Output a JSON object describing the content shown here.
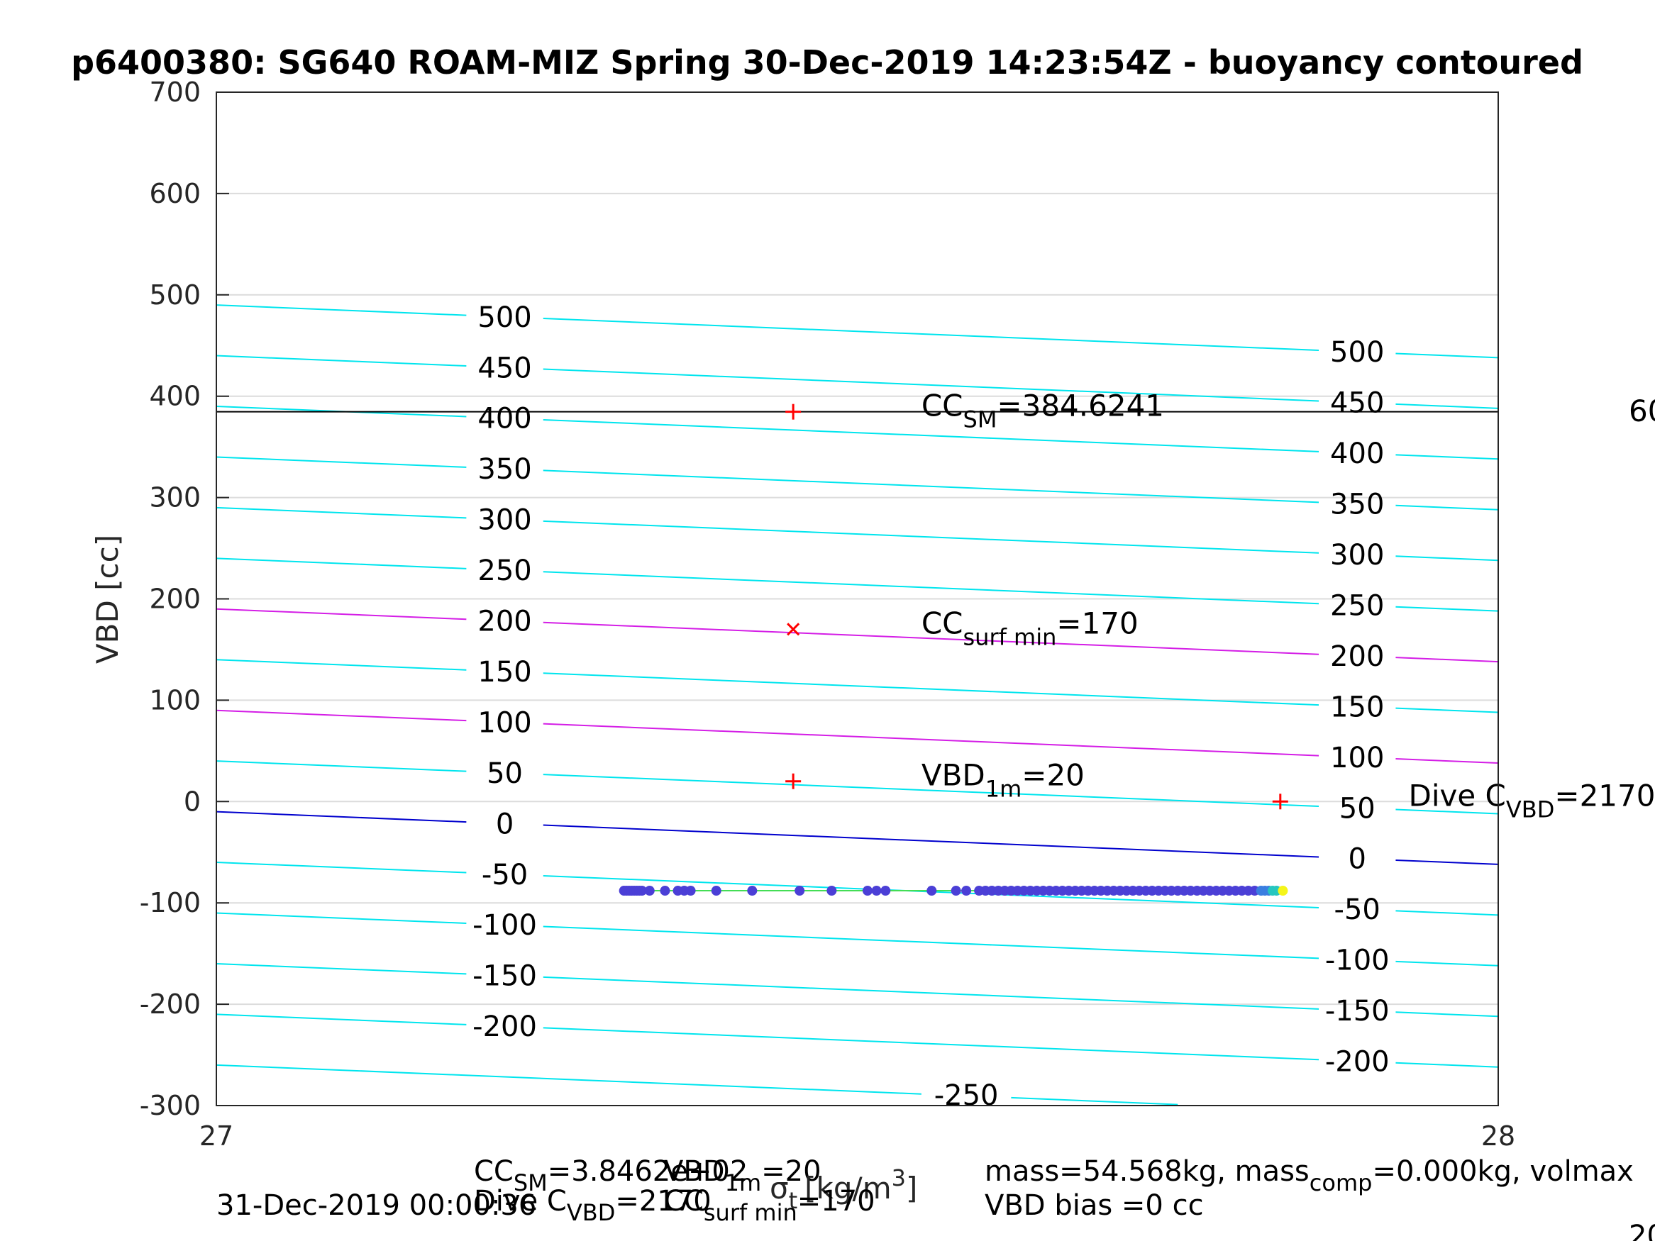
{
  "chart_data": {
    "type": "line",
    "title": "p6400380: SG640 ROAM-MIZ Spring 30-Dec-2019 14:23:54Z - buoyancy contoured",
    "ylabel": "VBD [cc]",
    "xlabel": "[kg/m",
    "xlabel_sigma": "σ",
    "xlabel_sub": "t",
    "xlabel_sup": "3",
    "xlabel_close": "]",
    "xlim": [
      27,
      28
    ],
    "ylim": [
      -300,
      700
    ],
    "x_ticks": [
      "27",
      "28"
    ],
    "y_ticks": [
      "700",
      "600",
      "500",
      "400",
      "300",
      "200",
      "100",
      "0",
      "-100",
      "-200",
      "-300"
    ],
    "y_tick_values": [
      700,
      600,
      500,
      400,
      300,
      200,
      100,
      0,
      -100,
      -200,
      -300
    ],
    "grid": true,
    "contours": {
      "slope_per_sigma": -52,
      "levels": [
        500,
        450,
        400,
        350,
        300,
        250,
        200,
        150,
        100,
        50,
        0,
        -50,
        -100,
        -150,
        -200,
        -250
      ],
      "label_left": [
        "500",
        "450",
        "400",
        "350",
        "300",
        "250",
        "200",
        "150",
        "100",
        "50",
        "0",
        "-50",
        "-100",
        "-150",
        "-200",
        ""
      ],
      "label_right": [
        "500",
        "450",
        "400",
        "350",
        "300",
        "250",
        "200",
        "150",
        "100",
        "50",
        "0",
        "-50",
        "-100",
        "-150",
        "-200",
        ""
      ],
      "label_bottom": "-250",
      "color_default": "#00e5ee",
      "color_highlight": "#d41ee6",
      "color_zero": "#0000cd",
      "highlight_levels": [
        200,
        100
      ],
      "offset_cc": 0
    },
    "cc_sm_line": {
      "y": 384.6241,
      "color": "#000000"
    },
    "markers": [
      {
        "x": 27.45,
        "y": 384.6241,
        "symbol": "+",
        "color": "#ff0000"
      },
      {
        "x": 27.45,
        "y": 170,
        "symbol": "x",
        "color": "#ff0000"
      },
      {
        "x": 27.45,
        "y": 20,
        "symbol": "+",
        "color": "#ff0000"
      },
      {
        "x": 27.83,
        "y": 0,
        "symbol": "+",
        "color": "#ff0000"
      }
    ],
    "annotations": [
      {
        "x": 27.55,
        "y": 384.6241,
        "base": "CC",
        "sub": "SM",
        "rest": "=384.6241"
      },
      {
        "x": 27.55,
        "y": 170,
        "base": "CC",
        "sub": "surf min",
        "rest": "=170"
      },
      {
        "x": 27.55,
        "y": 20,
        "base": "VBD",
        "sub": "1m",
        "rest": "=20"
      },
      {
        "x": 27.93,
        "y": 0,
        "base": "Dive C",
        "sub": "VBD",
        "rest": "=2170"
      }
    ],
    "right_clip_label": "60",
    "observations": {
      "y": -88,
      "x_start": 27.32,
      "x_end": 27.83,
      "line_color": "#44dd55",
      "point_color": "#4b3fd6",
      "end_color": "#f5f519",
      "x": [
        27.318,
        27.32,
        27.322,
        27.324,
        27.326,
        27.328,
        27.33,
        27.332,
        27.338,
        27.35,
        27.36,
        27.365,
        27.37,
        27.39,
        27.418,
        27.455,
        27.48,
        27.508,
        27.515,
        27.522,
        27.558,
        27.577,
        27.585,
        27.595,
        27.6,
        27.605,
        27.61,
        27.615,
        27.62,
        27.625,
        27.63,
        27.635,
        27.64,
        27.645,
        27.65,
        27.655,
        27.66,
        27.665,
        27.67,
        27.675,
        27.68,
        27.685,
        27.69,
        27.695,
        27.7,
        27.705,
        27.71,
        27.715,
        27.72,
        27.725,
        27.73,
        27.735,
        27.74,
        27.745,
        27.75,
        27.755,
        27.76,
        27.765,
        27.77,
        27.775,
        27.78,
        27.785,
        27.79,
        27.795,
        27.8,
        27.805,
        27.81,
        27.815,
        27.818,
        27.821,
        27.824,
        27.827,
        27.832
      ]
    }
  },
  "footer": {
    "line1_left_a": "CC",
    "line1_left_a_sub": "SM",
    "line1_left_a_rest": "=3.8462e+02",
    "line1_left_b": "VBD",
    "line1_left_b_sub": "1m",
    "line1_left_b_rest": "=20",
    "line2_date": "31-Dec-2019 00:00:36",
    "line2_dive": "Dive C",
    "line2_dive_sub": "VBD",
    "line2_dive_rest": "=2170",
    "line2_ccsurf": "CC",
    "line2_ccsurf_sub": "surf min",
    "line2_ccsurf_rest": "=170",
    "right_line1": "mass=54.568kg, mass",
    "right_line1_sub": "comp",
    "right_line1_rest": "=0.000kg, volmax",
    "right_line2": "VBD bias =0 cc",
    "corner_clip": "20"
  }
}
